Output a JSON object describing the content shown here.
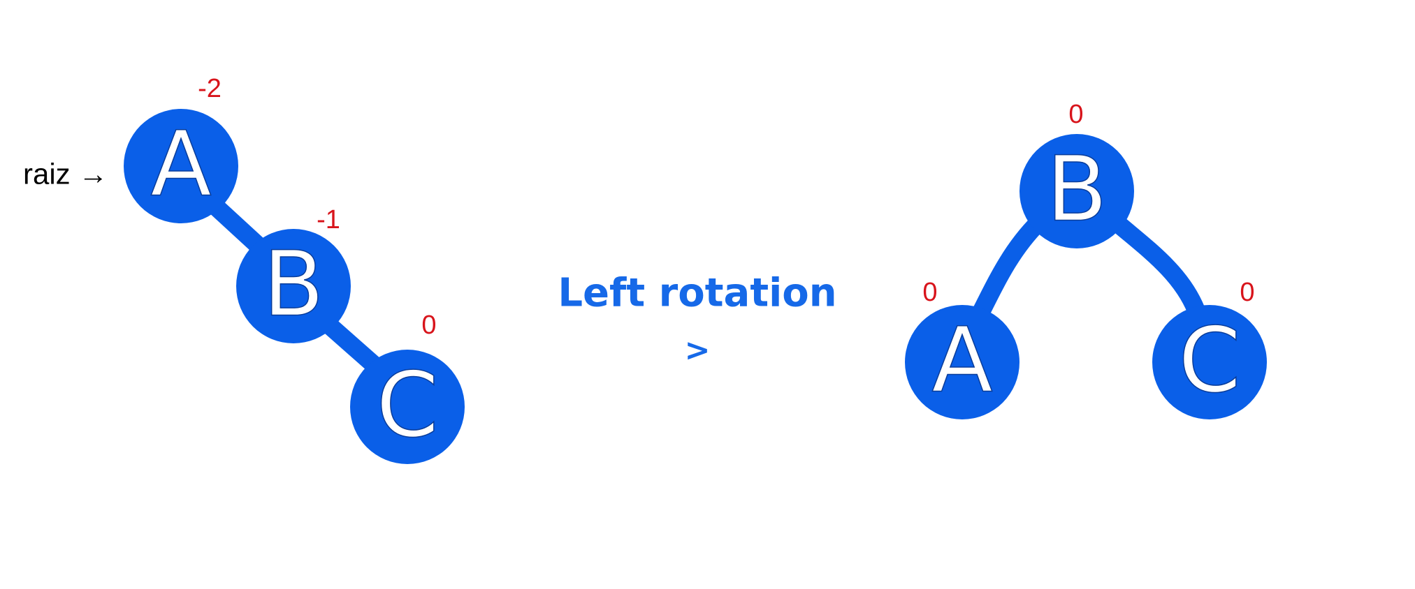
{
  "root_label": "raiz →",
  "operation": {
    "title": "Left rotation",
    "arrow": ">"
  },
  "colors": {
    "node": "#0a5fe8",
    "balance_factor": "#d8141b",
    "operation_text": "#1669e8"
  },
  "before": {
    "nodes": [
      {
        "letter": "A",
        "balance": "-2"
      },
      {
        "letter": "B",
        "balance": "-1"
      },
      {
        "letter": "C",
        "balance": "0"
      }
    ],
    "edges": [
      [
        "A",
        "B"
      ],
      [
        "B",
        "C"
      ]
    ]
  },
  "after": {
    "nodes": [
      {
        "letter": "B",
        "balance": "0"
      },
      {
        "letter": "A",
        "balance": "0"
      },
      {
        "letter": "C",
        "balance": "0"
      }
    ],
    "edges": [
      [
        "B",
        "A"
      ],
      [
        "B",
        "C"
      ]
    ]
  }
}
